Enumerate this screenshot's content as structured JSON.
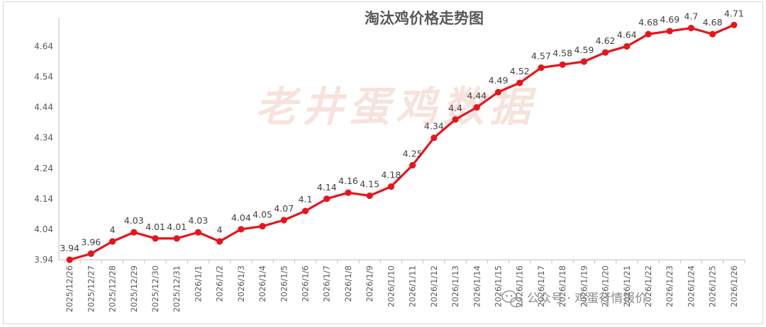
{
  "watermark": "老井蛋鸡数据",
  "brand": {
    "icon": "wechat-icon",
    "account_label": "公众号 · 鸡蛋行情报价"
  },
  "colors": {
    "series": "#e8141b",
    "axis": "#bfbfbf",
    "text": "#595959"
  },
  "chart_data": {
    "type": "line",
    "title": "淘汰鸡价格走势图",
    "xlabel": "",
    "ylabel": "",
    "ylim": [
      3.94,
      4.72
    ],
    "yticks": [
      "3.94",
      "4.04",
      "4.14",
      "4.24",
      "4.34",
      "4.44",
      "4.54",
      "4.64"
    ],
    "grid": false,
    "legend": "none",
    "categories": [
      "2025/12/26",
      "2025/12/27",
      "2025/12/28",
      "2025/12/29",
      "2025/12/30",
      "2025/12/31",
      "2026/1/1",
      "2026/1/2",
      "2026/1/3",
      "2026/1/4",
      "2026/1/5",
      "2026/1/6",
      "2026/1/7",
      "2026/1/8",
      "2026/1/9",
      "2026/1/10",
      "2026/1/11",
      "2026/1/12",
      "2026/1/13",
      "2026/1/14",
      "2026/1/15",
      "2026/1/16",
      "2026/1/17",
      "2026/1/18",
      "2026/1/19",
      "2026/1/20",
      "2026/1/21",
      "2026/1/22",
      "2026/1/23",
      "2026/1/24",
      "2026/1/25",
      "2026/1/26"
    ],
    "series": [
      {
        "values": [
          3.94,
          3.96,
          4,
          4.03,
          4.01,
          4.01,
          4.03,
          4,
          4.04,
          4.05,
          4.07,
          4.1,
          4.14,
          4.16,
          4.15,
          4.18,
          4.25,
          4.34,
          4.4,
          4.44,
          4.49,
          4.52,
          4.57,
          4.58,
          4.59,
          4.62,
          4.64,
          4.68,
          4.69,
          4.7,
          4.68,
          4.71
        ],
        "labels": [
          "3.94",
          "3.96",
          "4",
          "4.03",
          "4.01",
          "4.01",
          "4.03",
          "4",
          "4.04",
          "4.05",
          "4.07",
          "4.1",
          "4.14",
          "4.16",
          "4.15",
          "4.18",
          "4.25",
          "4.34",
          "4.4",
          "4.44",
          "4.49",
          "4.52",
          "4.57",
          "4.58",
          "4.59",
          "4.62",
          "4.64",
          "4.68",
          "4.69",
          "4.7",
          "4.68",
          "4.71"
        ]
      }
    ]
  }
}
